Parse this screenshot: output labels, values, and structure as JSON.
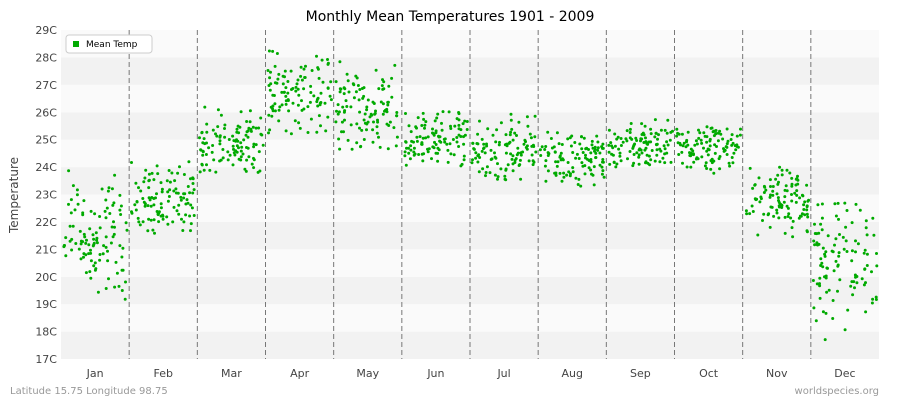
{
  "chart_data": {
    "type": "scatter",
    "title": "Monthly Mean Temperatures 1901 - 2009",
    "xlabel": "",
    "ylabel": "Temperature",
    "ylim": [
      17,
      29
    ],
    "yticks": [
      "17C",
      "18C",
      "19C",
      "20C",
      "21C",
      "22C",
      "23C",
      "24C",
      "25C",
      "26C",
      "27C",
      "28C",
      "29C"
    ],
    "categories": [
      "Jan",
      "Feb",
      "Mar",
      "Apr",
      "May",
      "Jun",
      "Jul",
      "Aug",
      "Sep",
      "Oct",
      "Nov",
      "Dec"
    ],
    "grid": true,
    "legend": "top-left",
    "series": [
      {
        "name": "Mean Temp",
        "color": "#00aa00",
        "monthly_summary": [
          {
            "month": "Jan",
            "mean": 21.5,
            "min": 19.0,
            "max": 23.9
          },
          {
            "month": "Feb",
            "mean": 22.8,
            "min": 21.5,
            "max": 24.2
          },
          {
            "month": "Mar",
            "mean": 24.8,
            "min": 23.8,
            "max": 26.2
          },
          {
            "month": "Apr",
            "mean": 26.6,
            "min": 25.2,
            "max": 28.3
          },
          {
            "month": "May",
            "mean": 26.0,
            "min": 24.6,
            "max": 28.0
          },
          {
            "month": "Jun",
            "mean": 25.0,
            "min": 24.0,
            "max": 26.1
          },
          {
            "month": "Jul",
            "mean": 24.5,
            "min": 23.5,
            "max": 26.0
          },
          {
            "month": "Aug",
            "mean": 24.3,
            "min": 23.3,
            "max": 25.3
          },
          {
            "month": "Sep",
            "mean": 24.8,
            "min": 24.0,
            "max": 25.8
          },
          {
            "month": "Oct",
            "mean": 24.6,
            "min": 23.6,
            "max": 25.5
          },
          {
            "month": "Nov",
            "mean": 22.7,
            "min": 21.4,
            "max": 24.0
          },
          {
            "month": "Dec",
            "mean": 20.7,
            "min": 17.7,
            "max": 22.7
          }
        ],
        "points_per_month": 109
      }
    ]
  },
  "footer": {
    "left": "Latitude 15.75 Longitude 98.75",
    "right": "worldspecies.org"
  },
  "colors": {
    "band_light": "#fafafa",
    "band_dark": "#f2f2f2",
    "divider": "#777777",
    "point": "#00aa00"
  }
}
